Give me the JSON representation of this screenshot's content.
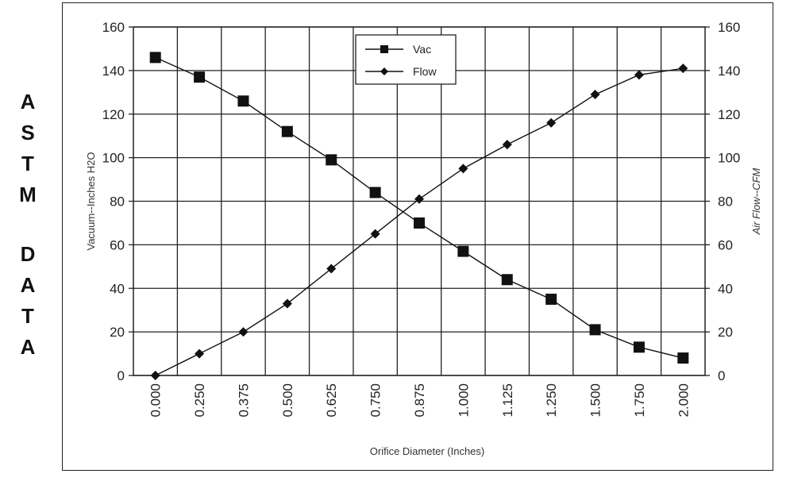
{
  "side_title": {
    "lines": [
      "ASTM",
      "DATA"
    ]
  },
  "chart_data": {
    "type": "line",
    "title": "",
    "xlabel": "Orifice Diameter (Inches)",
    "ylabel_left": "Vacuum--Inches H2O",
    "ylabel_right": "Air Flow--CFM",
    "categories": [
      "0.000",
      "0.250",
      "0.375",
      "0.500",
      "0.625",
      "0.750",
      "0.875",
      "1.000",
      "1.125",
      "1.250",
      "1.500",
      "1.750",
      "2.000"
    ],
    "ylim": [
      0,
      160
    ],
    "y_ticks": [
      "0",
      "20",
      "40",
      "60",
      "80",
      "100",
      "120",
      "140",
      "160"
    ],
    "y2lim": [
      0,
      160
    ],
    "y2_ticks": [
      "0",
      "20",
      "40",
      "60",
      "80",
      "100",
      "120",
      "140",
      "160"
    ],
    "grid": true,
    "legend_position": "top-center",
    "series": [
      {
        "name": "Vac",
        "marker": "square",
        "axis": "left",
        "values": [
          146,
          137,
          126,
          112,
          99,
          84,
          70,
          57,
          44,
          35,
          21,
          13,
          8
        ]
      },
      {
        "name": "Flow",
        "marker": "diamond",
        "axis": "right",
        "values": [
          0,
          10,
          20,
          33,
          49,
          65,
          81,
          95,
          106,
          116,
          129,
          138,
          141
        ]
      }
    ],
    "colors": {
      "line": "#111111",
      "grid": "#222222"
    }
  }
}
